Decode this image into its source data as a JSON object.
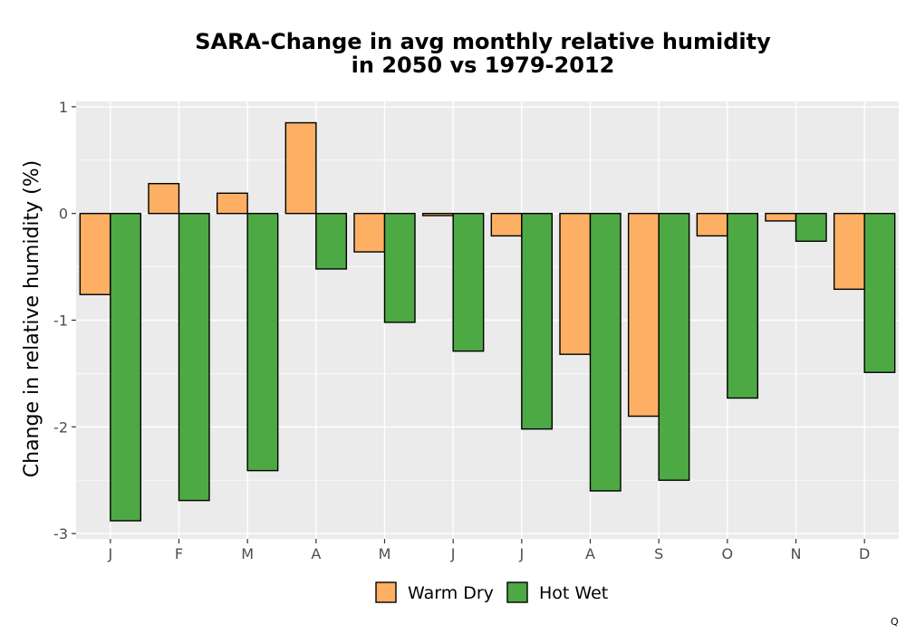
{
  "chart_data": {
    "type": "bar",
    "title": [
      "SARA-Change in avg monthly relative humidity",
      "in 2050 vs 1979-2012"
    ],
    "xlabel": "",
    "ylabel": "Change in relative humidity (%)",
    "categories": [
      "J",
      "F",
      "M",
      "A",
      "M",
      "J",
      "J",
      "A",
      "S",
      "O",
      "N",
      "D"
    ],
    "series": [
      {
        "name": "Warm Dry",
        "color": "#FDB064",
        "values": [
          -0.76,
          0.28,
          0.19,
          0.85,
          -0.36,
          -0.02,
          -0.21,
          -1.32,
          -1.9,
          -0.21,
          -0.07,
          -0.71
        ]
      },
      {
        "name": "Hot Wet",
        "color": "#4DA943",
        "values": [
          -2.88,
          -2.69,
          -2.41,
          -0.52,
          -1.02,
          -1.29,
          -2.02,
          -2.6,
          -2.5,
          -1.73,
          -0.26,
          -1.49
        ]
      }
    ],
    "ylim": [
      -3.05,
      1.05
    ],
    "yticks": [
      1,
      0,
      -1,
      -2,
      -3
    ],
    "ytick_labels": [
      "1",
      "0",
      "-1",
      "-2",
      "-3"
    ],
    "grid": true,
    "legend_position": "bottom",
    "corner_mark": "Q"
  }
}
